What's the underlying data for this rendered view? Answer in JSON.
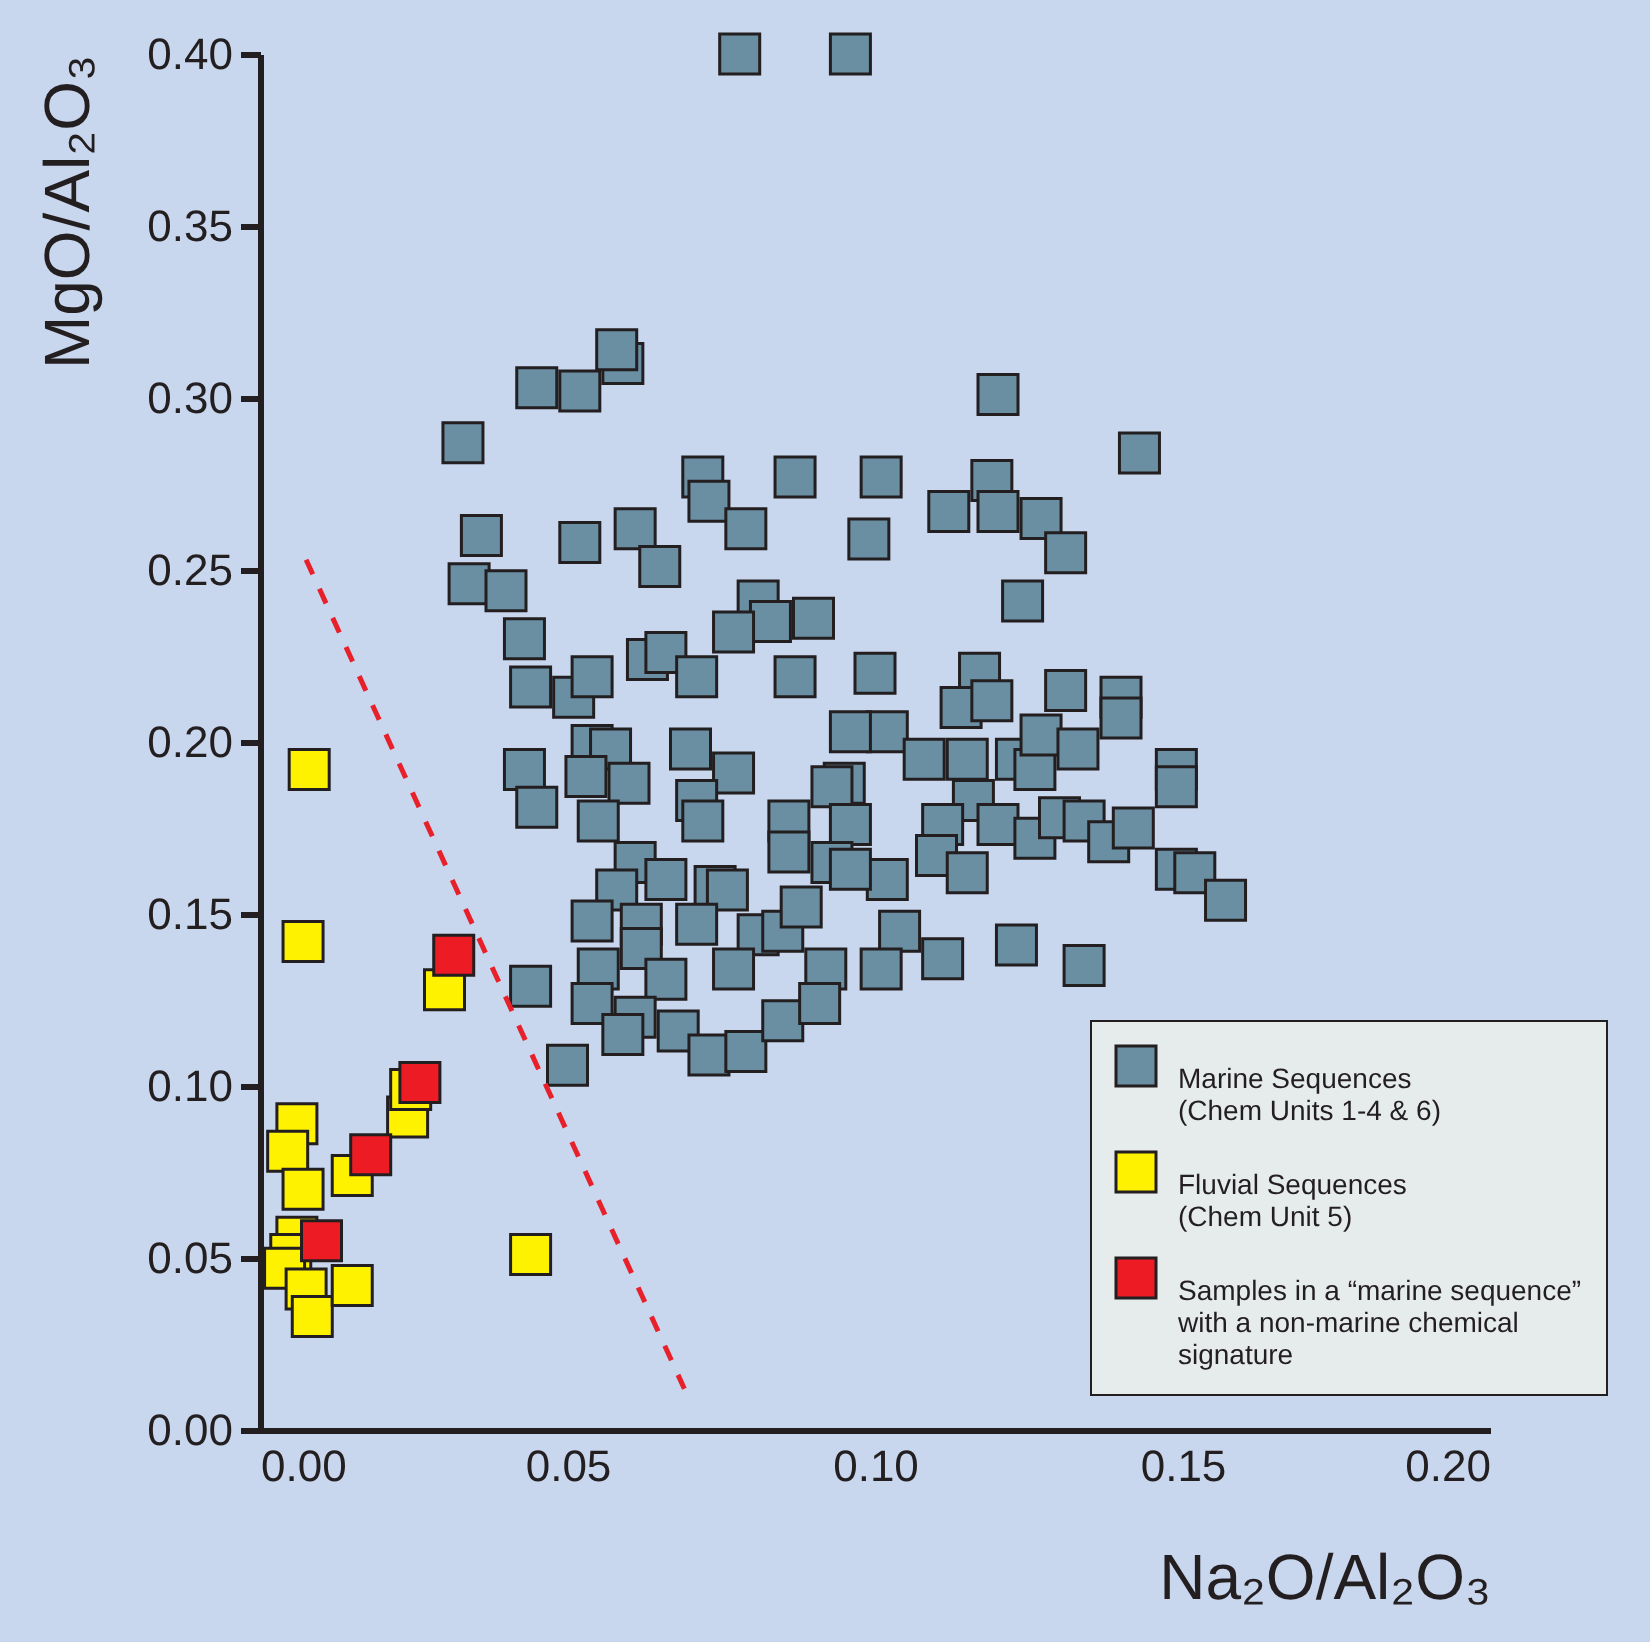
{
  "chart_data": {
    "type": "scatter",
    "xlabel": "Na₂O/Al₂O₃",
    "ylabel": "MgO/Al₂O₃",
    "xlim": [
      0,
      0.2
    ],
    "ylim": [
      0,
      0.4
    ],
    "xticks": [
      {
        "value": 0,
        "label": "0.00"
      },
      {
        "value": 0.05,
        "label": "0.05"
      },
      {
        "value": 0.1,
        "label": "0.10"
      },
      {
        "value": 0.15,
        "label": "0.15"
      },
      {
        "value": 0.2,
        "label": "0.20"
      }
    ],
    "yticks": [
      {
        "value": 0,
        "label": "0.00"
      },
      {
        "value": 0.05,
        "label": "0.05"
      },
      {
        "value": 0.1,
        "label": "0.10"
      },
      {
        "value": 0.15,
        "label": "0.15"
      },
      {
        "value": 0.2,
        "label": "0.20"
      },
      {
        "value": 0.25,
        "label": "0.25"
      },
      {
        "value": 0.3,
        "label": "0.30"
      },
      {
        "value": 0.35,
        "label": "0.35"
      },
      {
        "value": 0.4,
        "label": "0.40"
      }
    ],
    "legend": "bottom right",
    "marker": "square",
    "series": [
      {
        "name": "Marine Sequences\n(Chem Units 1-4 & 6)",
        "color": "#6a8fa3",
        "x": [
          0.078,
          0.096,
          0.12,
          0.143,
          0.101,
          0.112,
          0.119,
          0.12,
          0.127,
          0.131,
          0.124,
          0.099,
          0.1,
          0.117,
          0.114,
          0.119,
          0.131,
          0.14,
          0.14,
          0.102,
          0.108,
          0.115,
          0.123,
          0.126,
          0.127,
          0.133,
          0.149,
          0.149,
          0.116,
          0.111,
          0.12,
          0.126,
          0.13,
          0.134,
          0.138,
          0.142,
          0.11,
          0.115,
          0.102,
          0.149,
          0.152,
          0.157,
          0.104,
          0.111,
          0.101,
          0.123,
          0.134,
          0.059,
          0.045,
          0.052,
          0.058,
          0.033,
          0.072,
          0.073,
          0.087,
          0.079,
          0.036,
          0.052,
          0.061,
          0.065,
          0.034,
          0.04,
          0.043,
          0.081,
          0.083,
          0.09,
          0.077,
          0.044,
          0.051,
          0.054,
          0.063,
          0.066,
          0.071,
          0.087,
          0.096,
          0.043,
          0.045,
          0.054,
          0.057,
          0.053,
          0.06,
          0.07,
          0.077,
          0.071,
          0.072,
          0.055,
          0.095,
          0.093,
          0.096,
          0.086,
          0.086,
          0.061,
          0.066,
          0.058,
          0.074,
          0.076,
          0.093,
          0.096,
          0.054,
          0.062,
          0.071,
          0.081,
          0.085,
          0.088,
          0.062,
          0.055,
          0.066,
          0.077,
          0.092,
          0.054,
          0.061,
          0.059,
          0.068,
          0.073,
          0.079,
          0.085,
          0.091,
          0.044,
          0.05
        ],
        "values": [
          0.4,
          0.4,
          0.301,
          0.284,
          0.277,
          0.267,
          0.276,
          0.267,
          0.265,
          0.255,
          0.241,
          0.259,
          0.22,
          0.22,
          0.21,
          0.212,
          0.215,
          0.213,
          0.207,
          0.203,
          0.195,
          0.195,
          0.195,
          0.192,
          0.202,
          0.198,
          0.192,
          0.187,
          0.183,
          0.176,
          0.176,
          0.172,
          0.178,
          0.177,
          0.171,
          0.175,
          0.167,
          0.162,
          0.16,
          0.163,
          0.162,
          0.154,
          0.145,
          0.137,
          0.134,
          0.141,
          0.135,
          0.31,
          0.303,
          0.302,
          0.314,
          0.287,
          0.277,
          0.27,
          0.277,
          0.262,
          0.26,
          0.258,
          0.262,
          0.251,
          0.246,
          0.244,
          0.23,
          0.241,
          0.235,
          0.236,
          0.232,
          0.216,
          0.213,
          0.219,
          0.224,
          0.226,
          0.219,
          0.219,
          0.203,
          0.192,
          0.181,
          0.199,
          0.198,
          0.19,
          0.188,
          0.198,
          0.191,
          0.183,
          0.177,
          0.177,
          0.188,
          0.187,
          0.176,
          0.177,
          0.168,
          0.165,
          0.16,
          0.157,
          0.158,
          0.157,
          0.165,
          0.163,
          0.148,
          0.147,
          0.147,
          0.144,
          0.145,
          0.152,
          0.14,
          0.134,
          0.131,
          0.134,
          0.134,
          0.124,
          0.12,
          0.115,
          0.116,
          0.109,
          0.11,
          0.119,
          0.124,
          0.129,
          0.106
        ]
      },
      {
        "name": "Fluvial Sequences\n(Chem Unit 5)",
        "color": "#fff200",
        "x": [
          0.008,
          0.007,
          0.03,
          0.024,
          0.0245,
          0.006,
          0.0045,
          0.007,
          0.015,
          0.006,
          0.005,
          0.004,
          0.0075,
          0.0085,
          0.015,
          0.044
        ],
        "values": [
          0.192,
          0.142,
          0.128,
          0.091,
          0.099,
          0.089,
          0.081,
          0.07,
          0.074,
          0.056,
          0.051,
          0.047,
          0.041,
          0.033,
          0.042,
          0.051
        ]
      },
      {
        "name": "Samples in a “marine sequence”\nwith a non-marine chemical\nsignature",
        "color": "#ed1c24",
        "x": [
          0.0315,
          0.026,
          0.018,
          0.01
        ],
        "values": [
          0.138,
          0.101,
          0.08,
          0.055
        ]
      },
      {
        "type": "line",
        "marker": "none",
        "line_style": "dashed",
        "color": "#e8202a",
        "x": [
          0.0075,
          0.069
        ],
        "values": [
          0.253,
          0.012
        ]
      }
    ]
  }
}
